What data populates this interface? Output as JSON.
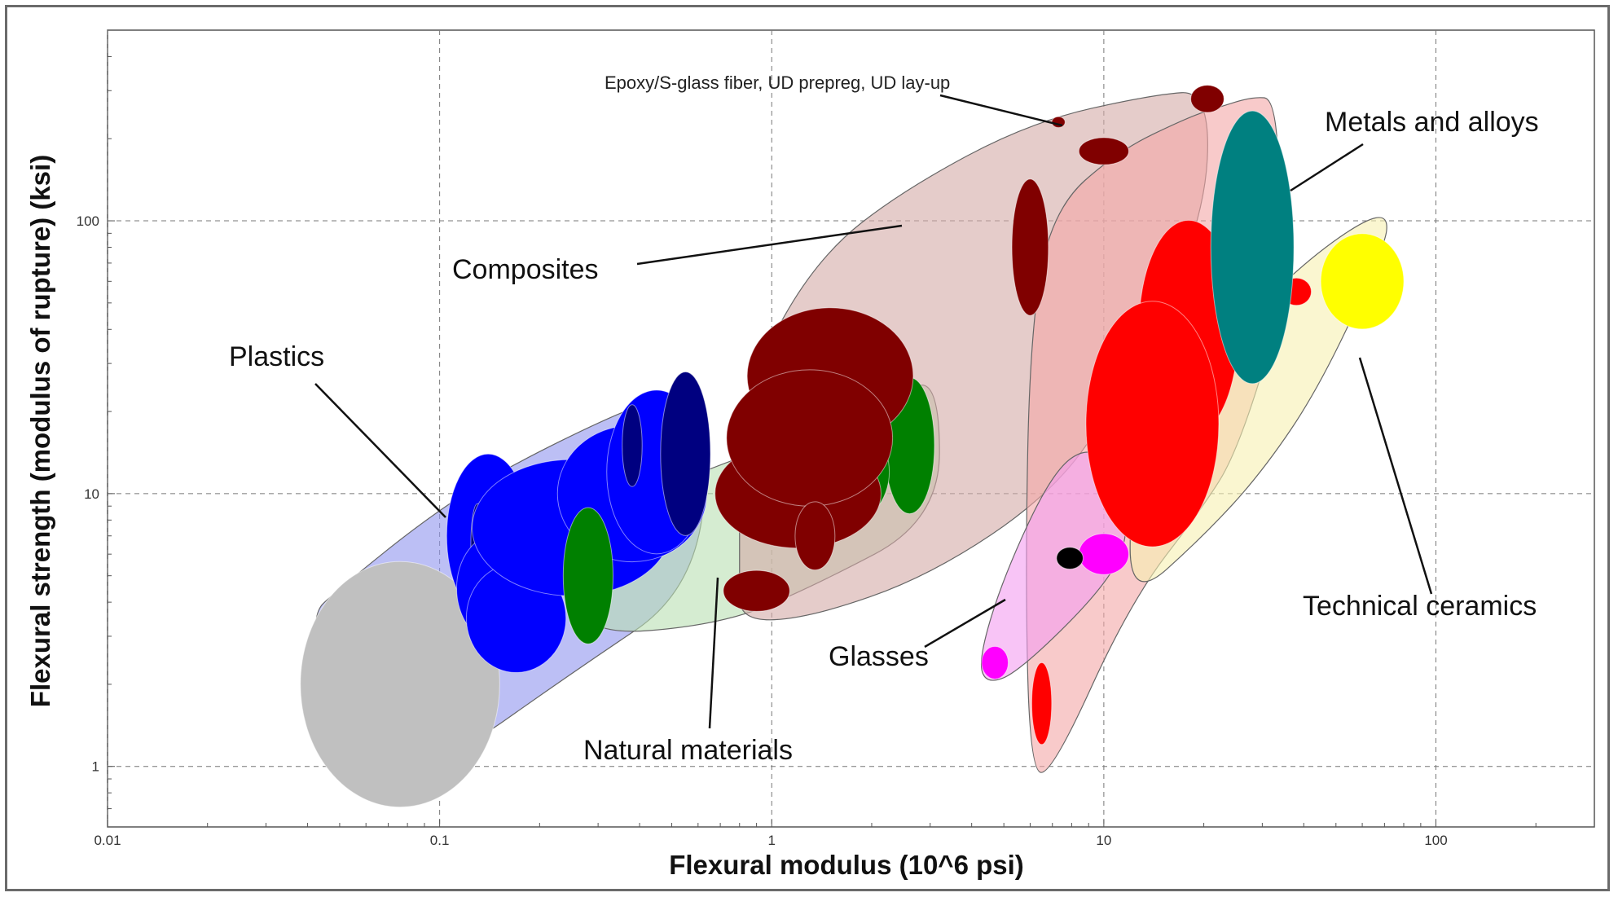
{
  "chart_data": {
    "type": "scatter",
    "subtype": "material property bubble chart (Ashby chart)",
    "xlabel": "Flexural modulus (10^6 psi)",
    "ylabel": "Flexural strength (modulus of rupture) (ksi)",
    "xscale": "log",
    "yscale": "log",
    "xlim": [
      0.01,
      300
    ],
    "ylim": [
      0.6,
      500
    ],
    "xticks": [
      0.01,
      0.1,
      1,
      10,
      100
    ],
    "xtick_labels": [
      "0.01",
      "0.1",
      "1",
      "10",
      "100"
    ],
    "yticks": [
      1,
      10,
      100
    ],
    "ytick_labels": [
      "1",
      "10",
      "100"
    ],
    "grid": "major, dashed",
    "families": [
      {
        "name": "Plastics",
        "color": "#0000ff",
        "envelope_color": "#8f95ee",
        "outline": [
          [
            0.05,
            1.0
          ],
          [
            0.1,
            1.0
          ],
          [
            0.25,
            2.2
          ],
          [
            0.6,
            4.5
          ],
          [
            0.65,
            20
          ],
          [
            0.55,
            24
          ],
          [
            0.35,
            20
          ],
          [
            0.15,
            12
          ],
          [
            0.09,
            8
          ],
          [
            0.05,
            4.5
          ],
          [
            0.04,
            3.5
          ],
          [
            0.05,
            1.2
          ]
        ]
      },
      {
        "name": "Natural materials",
        "color": "#008000",
        "envelope_color": "#b9dfb3",
        "outline": [
          [
            0.26,
            3.0
          ],
          [
            0.7,
            3.3
          ],
          [
            1.3,
            4.5
          ],
          [
            3.2,
            8
          ],
          [
            3.2,
            25
          ],
          [
            2.5,
            25
          ],
          [
            1.2,
            16
          ],
          [
            0.6,
            12
          ],
          [
            0.3,
            8
          ],
          [
            0.25,
            6
          ]
        ]
      },
      {
        "name": "Composites",
        "color": "#800000",
        "envelope_color": "#d4aaa6",
        "outline": [
          [
            0.8,
            3.4
          ],
          [
            1.3,
            3.5
          ],
          [
            3,
            5
          ],
          [
            7,
            10
          ],
          [
            11,
            22
          ],
          [
            20,
            95
          ],
          [
            21,
            300
          ],
          [
            14,
            290
          ],
          [
            6,
            230
          ],
          [
            2.5,
            130
          ],
          [
            1.4,
            75
          ],
          [
            0.9,
            30
          ],
          [
            0.8,
            15
          ],
          [
            0.8,
            5
          ]
        ]
      },
      {
        "name": "Metals and alloys",
        "color": "#ff0000",
        "envelope_color": "#f4a6a6",
        "outline": [
          [
            6,
            0.95
          ],
          [
            7,
            0.95
          ],
          [
            12,
            4
          ],
          [
            20,
            9
          ],
          [
            25,
            14
          ],
          [
            33,
            40
          ],
          [
            34,
            100
          ],
          [
            33,
            280
          ],
          [
            28,
            285
          ],
          [
            22,
            260
          ],
          [
            18,
            240
          ],
          [
            11,
            180
          ],
          [
            7,
            110
          ],
          [
            6,
            40
          ],
          [
            5.8,
            5
          ]
        ]
      },
      {
        "name": "Glasses",
        "color": "#ff00ff",
        "envelope_color": "#f49cf0",
        "outline": [
          [
            4.4,
            2.0
          ],
          [
            5.5,
            2.2
          ],
          [
            10,
            4.5
          ],
          [
            12,
            7
          ],
          [
            11,
            12
          ],
          [
            9,
            15
          ],
          [
            7,
            12
          ],
          [
            5,
            5
          ],
          [
            4.2,
            2.5
          ]
        ]
      },
      {
        "name": "Technical ceramics",
        "color": "#ffff00",
        "envelope_color": "#f6f0b0",
        "outline": [
          [
            12,
            4
          ],
          [
            20,
            7
          ],
          [
            30,
            12
          ],
          [
            45,
            25
          ],
          [
            70,
            80
          ],
          [
            72,
            105
          ],
          [
            60,
            100
          ],
          [
            40,
            70
          ],
          [
            25,
            40
          ],
          [
            15,
            20
          ],
          [
            12,
            10
          ]
        ]
      }
    ],
    "annotations": [
      {
        "text": "Epoxy/S-glass fiber, UD prepreg, UD lay-up",
        "x": 7.3,
        "y": 230
      }
    ],
    "grades": [
      {
        "family": "Plastics",
        "color": "#000080",
        "cx": 0.045,
        "cy": 2.2,
        "w": 0.1,
        "h": 0.3
      },
      {
        "family": "Plastics",
        "color": "#0000ff",
        "cx": 0.049,
        "cy": 2.1,
        "w": 0.05,
        "h": 0.06
      },
      {
        "family": "Plastics",
        "color": "#c0c0c0",
        "cx": 0.076,
        "cy": 2.0,
        "w": 0.6,
        "h": 0.9
      },
      {
        "family": "Plastics",
        "color": "#0000ff",
        "cx": 0.14,
        "cy": 7.0,
        "w": 0.25,
        "h": 0.6
      },
      {
        "family": "Plastics",
        "color": "#000080",
        "cx": 0.13,
        "cy": 6.5,
        "w": 0.04,
        "h": 0.3
      },
      {
        "family": "Plastics",
        "color": "#0000ff",
        "cx": 0.15,
        "cy": 4.5,
        "w": 0.25,
        "h": 0.4
      },
      {
        "family": "Plastics",
        "color": "#0000ff",
        "cx": 0.17,
        "cy": 3.5,
        "w": 0.3,
        "h": 0.4
      },
      {
        "family": "Plastics",
        "color": "#0000ff",
        "cx": 0.25,
        "cy": 7.5,
        "w": 0.6,
        "h": 0.5
      },
      {
        "family": "Plastics",
        "color": "#0000ff",
        "cx": 0.38,
        "cy": 10,
        "w": 0.45,
        "h": 0.5
      },
      {
        "family": "Plastics",
        "color": "#0000ff",
        "cx": 0.45,
        "cy": 12,
        "w": 0.3,
        "h": 0.6
      },
      {
        "family": "Plastics",
        "color": "#000080",
        "cx": 0.55,
        "cy": 14,
        "w": 0.15,
        "h": 0.6
      },
      {
        "family": "Plastics",
        "color": "#000080",
        "cx": 0.38,
        "cy": 15,
        "w": 0.06,
        "h": 0.3
      },
      {
        "family": "Natural materials",
        "color": "#008000",
        "cx": 0.28,
        "cy": 5.0,
        "w": 0.15,
        "h": 0.5
      },
      {
        "family": "Natural materials",
        "color": "#008000",
        "cx": 2.6,
        "cy": 15,
        "w": 0.15,
        "h": 0.5
      },
      {
        "family": "Natural materials",
        "color": "#008000",
        "cx": 1.6,
        "cy": 12,
        "w": 0.3,
        "h": 0.4
      },
      {
        "family": "Composites",
        "color": "#800000",
        "cx": 1.5,
        "cy": 27,
        "w": 0.5,
        "h": 0.5
      },
      {
        "family": "Composites",
        "color": "#800000",
        "cx": 1.2,
        "cy": 10,
        "w": 0.5,
        "h": 0.4
      },
      {
        "family": "Composites",
        "color": "#800000",
        "cx": 1.3,
        "cy": 16,
        "w": 0.5,
        "h": 0.5
      },
      {
        "family": "Composites",
        "color": "#800000",
        "cx": 0.9,
        "cy": 4.4,
        "w": 0.2,
        "h": 0.15
      },
      {
        "family": "Composites",
        "color": "#800000",
        "cx": 1.35,
        "cy": 7,
        "w": 0.12,
        "h": 0.25
      },
      {
        "family": "Composites",
        "color": "#800000",
        "cx": 6,
        "cy": 80,
        "w": 0.11,
        "h": 0.5
      },
      {
        "family": "Composites",
        "color": "#800000",
        "cx": 10,
        "cy": 180,
        "w": 0.15,
        "h": 0.1
      },
      {
        "family": "Composites",
        "color": "#800000",
        "cx": 20.5,
        "cy": 280,
        "w": 0.1,
        "h": 0.1
      },
      {
        "family": "Composites",
        "color": "#800000",
        "cx": 7.3,
        "cy": 230,
        "w": 0.04,
        "h": 0.04
      },
      {
        "family": "Metals and alloys",
        "color": "#ff0000",
        "cx": 18,
        "cy": 40,
        "w": 0.3,
        "h": 0.8
      },
      {
        "family": "Metals and alloys",
        "color": "#ff0000",
        "cx": 14,
        "cy": 18,
        "w": 0.4,
        "h": 0.9
      },
      {
        "family": "Metals and alloys",
        "color": "#ff0000",
        "cx": 6.5,
        "cy": 1.7,
        "w": 0.06,
        "h": 0.3
      },
      {
        "family": "Metals and alloys",
        "color": "#ff0000",
        "cx": 38,
        "cy": 55,
        "w": 0.09,
        "h": 0.1
      },
      {
        "family": "Metals and alloys",
        "color": "#008080",
        "cx": 28,
        "cy": 80,
        "w": 0.25,
        "h": 1.0
      },
      {
        "family": "Glasses",
        "color": "#ff00ff",
        "cx": 10,
        "cy": 6,
        "w": 0.15,
        "h": 0.15
      },
      {
        "family": "Glasses",
        "color": "#ff00ff",
        "cx": 4.7,
        "cy": 2.4,
        "w": 0.08,
        "h": 0.12
      },
      {
        "family": "Glasses",
        "color": "#000000",
        "cx": 7.9,
        "cy": 5.8,
        "w": 0.08,
        "h": 0.08
      },
      {
        "family": "Technical ceramics",
        "color": "#ffff00",
        "cx": 60,
        "cy": 60,
        "w": 0.25,
        "h": 0.35
      }
    ]
  }
}
